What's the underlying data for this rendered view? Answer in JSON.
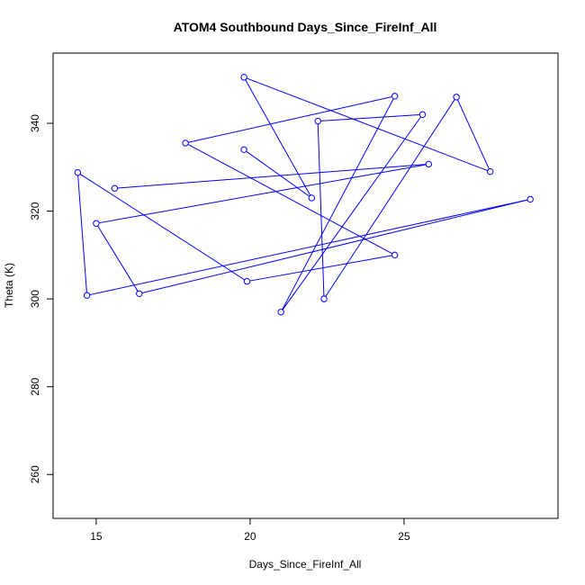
{
  "chart_data": {
    "type": "line",
    "title": "ATOM4 Southbound Days_Since_FireInf_All",
    "xlabel": "Days_Since_FireInf_All",
    "ylabel": "Theta (K)",
    "xlim": [
      13.6,
      30.0
    ],
    "ylim": [
      250,
      356
    ],
    "xticks": [
      15,
      20,
      25
    ],
    "yticks": [
      260,
      280,
      300,
      320,
      340
    ],
    "grid": false,
    "legend": "none",
    "series": [
      {
        "color": "#0000ff",
        "marker": "open-circle",
        "points": [
          {
            "x": 19.8,
            "y": 334.0
          },
          {
            "x": 22.0,
            "y": 323.0
          },
          {
            "x": 19.8,
            "y": 350.5
          },
          {
            "x": 27.8,
            "y": 329.0
          },
          {
            "x": 26.7,
            "y": 346.0
          },
          {
            "x": 22.4,
            "y": 300.0
          },
          {
            "x": 22.2,
            "y": 340.5
          },
          {
            "x": 25.6,
            "y": 342.0
          },
          {
            "x": 21.0,
            "y": 297.0
          },
          {
            "x": 24.7,
            "y": 346.2
          },
          {
            "x": 17.9,
            "y": 335.5
          },
          {
            "x": 24.7,
            "y": 310.0
          },
          {
            "x": 19.9,
            "y": 304.0
          },
          {
            "x": 14.4,
            "y": 328.8
          },
          {
            "x": 14.7,
            "y": 300.8
          },
          {
            "x": 29.1,
            "y": 322.7
          },
          {
            "x": 16.4,
            "y": 301.2
          },
          {
            "x": 15.0,
            "y": 317.2
          },
          {
            "x": 25.8,
            "y": 330.7
          },
          {
            "x": 15.6,
            "y": 325.2
          }
        ]
      }
    ]
  }
}
